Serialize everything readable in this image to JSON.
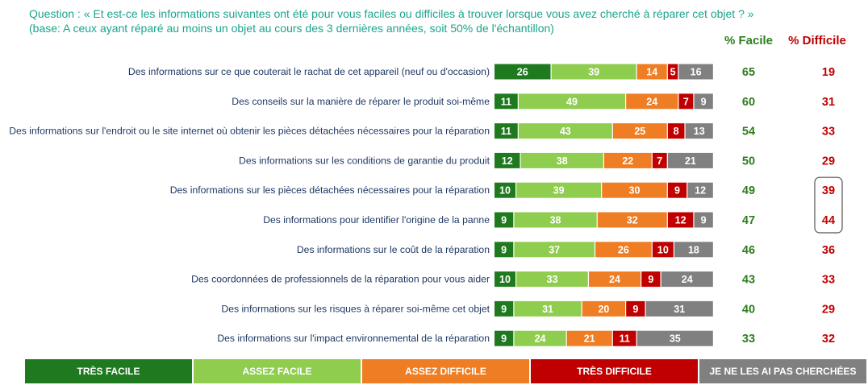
{
  "question": {
    "line1": "Question : « Et est-ce les informations suivantes ont été pour vous faciles ou difficiles à trouver lorsque vous avez cherché à réparer cet objet ? »",
    "line2": "(base: A ceux ayant réparé au moins un objet au cours des 3 dernières années, soit 50% de l'échantillon)"
  },
  "columns": {
    "facile_header": "% Facile",
    "difficile_header": "% Difficile"
  },
  "colors": {
    "tres_facile": "#1f7a1f",
    "assez_facile": "#8fcd4f",
    "assez_difficile": "#ee7d23",
    "tres_difficile": "#c00000",
    "non_cherche": "#808080",
    "facile_text": "#2e7d1e",
    "difficile_text": "#c00000",
    "highlight_border": "#555555"
  },
  "legend": [
    {
      "label": "TRÈS FACILE",
      "color": "#1f7a1f"
    },
    {
      "label": "ASSEZ FACILE",
      "color": "#8fcd4f"
    },
    {
      "label": "ASSEZ DIFFICILE",
      "color": "#ee7d23"
    },
    {
      "label": "TRÈS DIFFICILE",
      "color": "#c00000"
    },
    {
      "label": "JE NE LES AI PAS CHERCHÉES",
      "color": "#808080"
    }
  ],
  "chart_data": {
    "type": "bar",
    "orientation": "horizontal",
    "stacked": true,
    "title": "",
    "xlabel": "",
    "ylabel": "",
    "xlim": [
      0,
      100
    ],
    "legend_placement": "bottom",
    "categories": [
      "Des informations sur ce que couterait le rachat de cet appareil (neuf ou d'occasion)",
      "Des conseils sur la manière de réparer le produit soi-même",
      "Des informations sur l'endroit ou le site internet où obtenir les pièces détachées nécessaires pour la réparation",
      "Des informations sur les conditions de garantie du produit",
      "Des informations sur les pièces détachées nécessaires pour la réparation",
      "Des informations pour identifier l'origine de la panne",
      "Des informations sur le coût de la réparation",
      "Des coordonnées de professionnels de la réparation pour vous aider",
      "Des informations sur les risques à réparer soi-même cet objet",
      "Des informations sur l'impact environnemental de la réparation"
    ],
    "series": [
      {
        "name": "TRÈS FACILE",
        "values": [
          26,
          11,
          11,
          12,
          10,
          9,
          9,
          10,
          9,
          9
        ]
      },
      {
        "name": "ASSEZ FACILE",
        "values": [
          39,
          49,
          43,
          38,
          39,
          38,
          37,
          33,
          31,
          24
        ]
      },
      {
        "name": "ASSEZ DIFFICILE",
        "values": [
          14,
          24,
          25,
          22,
          30,
          32,
          26,
          24,
          20,
          21
        ]
      },
      {
        "name": "TRÈS DIFFICILE",
        "values": [
          5,
          7,
          8,
          7,
          9,
          12,
          10,
          9,
          9,
          11
        ]
      },
      {
        "name": "JE NE LES AI PAS CHERCHÉES",
        "values": [
          16,
          9,
          13,
          21,
          12,
          9,
          18,
          24,
          31,
          35
        ]
      }
    ],
    "facile": [
      65,
      60,
      54,
      50,
      49,
      47,
      46,
      43,
      40,
      33
    ],
    "difficile": [
      19,
      31,
      33,
      29,
      39,
      44,
      36,
      33,
      29,
      32
    ],
    "highlighted_difficile_rows": [
      4,
      5
    ]
  }
}
